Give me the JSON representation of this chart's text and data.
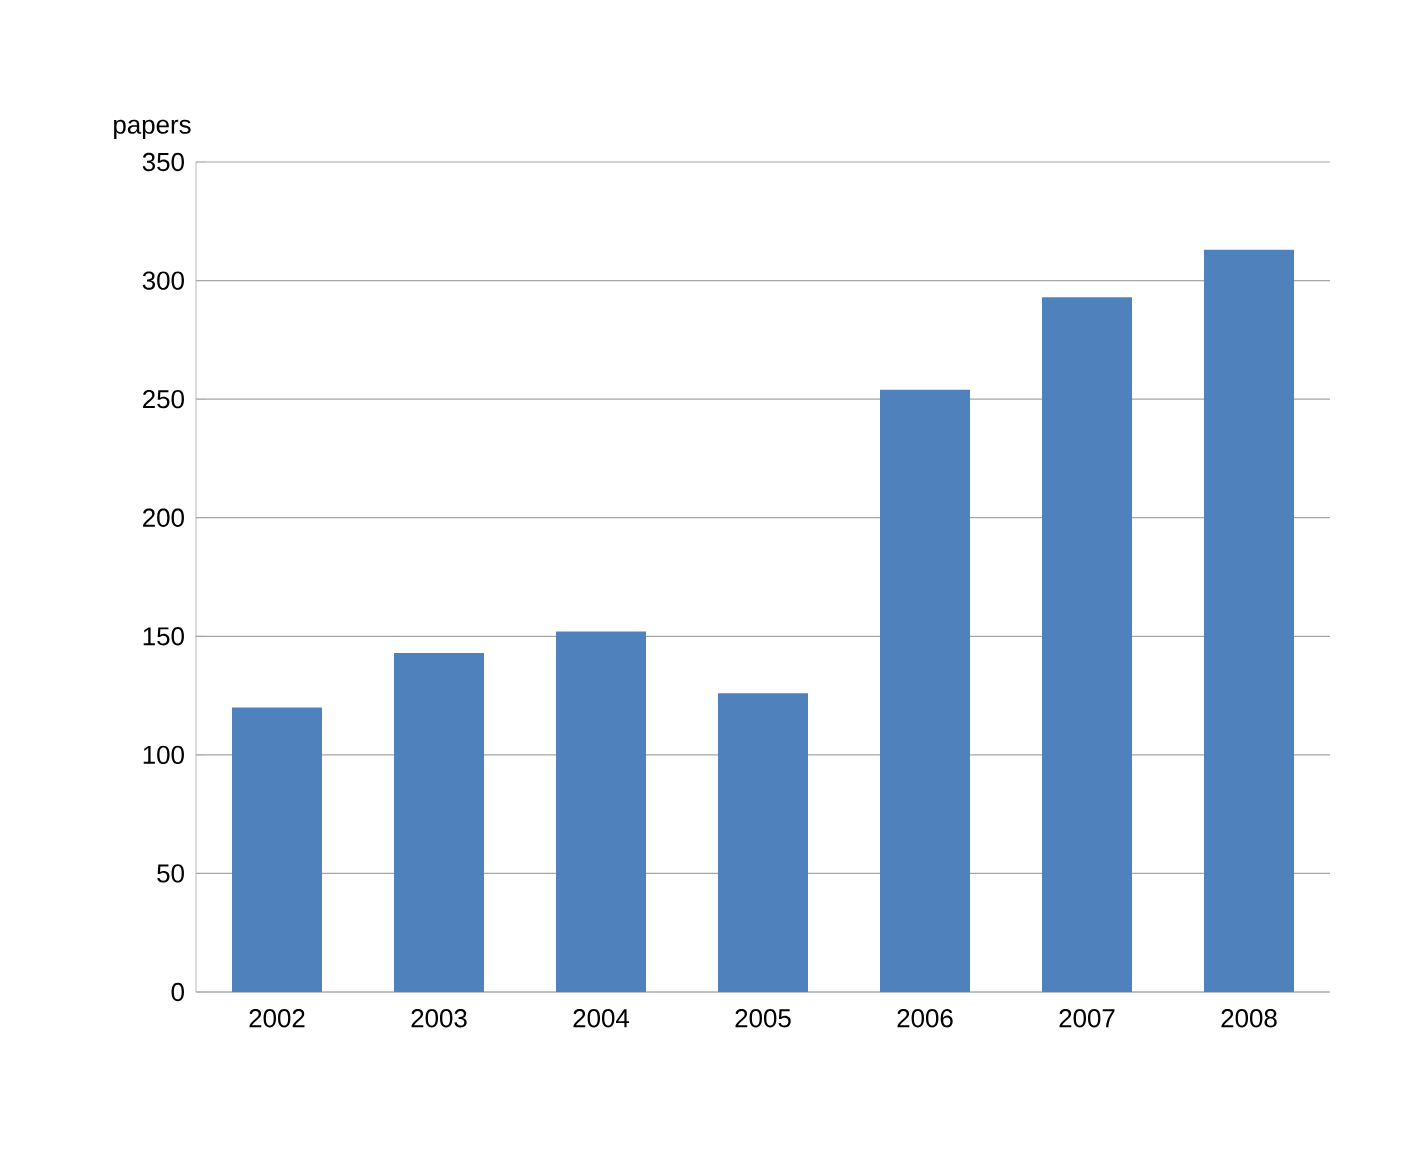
{
  "chart_data": {
    "type": "bar",
    "ylabel": "papers",
    "categories": [
      "2002",
      "2003",
      "2004",
      "2005",
      "2006",
      "2007",
      "2008"
    ],
    "values": [
      120,
      143,
      152,
      126,
      254,
      293,
      313
    ],
    "color": "#4f81bd",
    "ylim": [
      0,
      350
    ],
    "yticks": [
      0,
      50,
      100,
      150,
      200,
      250,
      300,
      350
    ],
    "grid": "y"
  }
}
